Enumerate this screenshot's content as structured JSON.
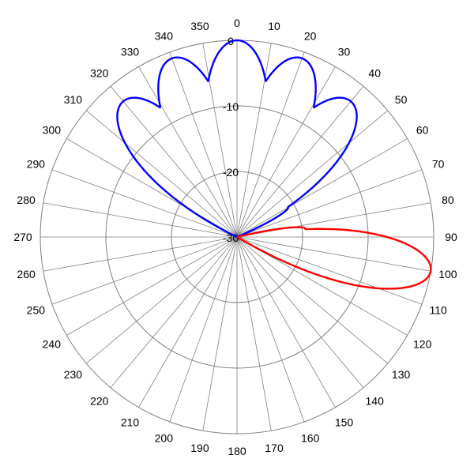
{
  "chart_data": {
    "type": "polar-line",
    "angle_labels": [
      "0",
      "10",
      "20",
      "30",
      "40",
      "50",
      "60",
      "70",
      "80",
      "90",
      "100",
      "110",
      "120",
      "130",
      "140",
      "150",
      "160",
      "170",
      "180",
      "190",
      "200",
      "210",
      "220",
      "230",
      "240",
      "250",
      "260",
      "270",
      "280",
      "290",
      "300",
      "310",
      "320",
      "330",
      "340",
      "350"
    ],
    "ring_labels": [
      "0",
      "-10",
      "-20",
      "-30"
    ],
    "radial_range": [
      -30,
      0
    ],
    "grid": true,
    "spoke_step_deg": 10,
    "series": [
      {
        "color": "#0000ff",
        "lobes": [
          {
            "az": 0,
            "peak_db": 0,
            "width_deg": 15
          },
          {
            "az": 20,
            "peak_db": -1,
            "width_deg": 15
          },
          {
            "az": -20,
            "peak_db": -1,
            "width_deg": 15
          },
          {
            "az": 40,
            "peak_db": -3,
            "width_deg": 16
          },
          {
            "az": -40,
            "peak_db": -3,
            "width_deg": 16
          },
          {
            "az": 5,
            "peak_db": -17,
            "width_deg": 6
          },
          {
            "az": -5,
            "peak_db": -17,
            "width_deg": 6
          },
          {
            "az": 11,
            "peak_db": -19,
            "width_deg": 5
          },
          {
            "az": -11,
            "peak_db": -19,
            "width_deg": 5
          },
          {
            "az": 28,
            "peak_db": -16,
            "width_deg": 6
          },
          {
            "az": -28,
            "peak_db": -16,
            "width_deg": 6
          },
          {
            "az": -33,
            "peak_db": -18,
            "width_deg": 6
          },
          {
            "az": 47,
            "peak_db": -20,
            "width_deg": 6
          },
          {
            "az": 60,
            "peak_db": -21,
            "width_deg": 8
          },
          {
            "az": -55,
            "peak_db": -22,
            "width_deg": 8
          }
        ]
      },
      {
        "color": "#ff0000",
        "lobes": [
          {
            "az": 100,
            "peak_db": 0,
            "width_deg": 13
          },
          {
            "az": 83,
            "peak_db": -19.5,
            "width_deg": 7
          },
          {
            "az": 111,
            "peak_db": -14,
            "width_deg": 6
          }
        ]
      }
    ]
  }
}
